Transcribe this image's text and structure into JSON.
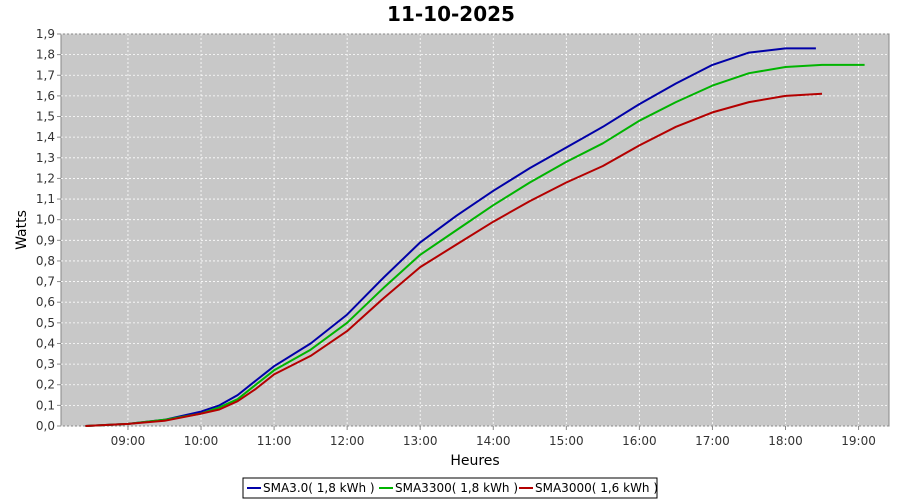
{
  "chart_data": {
    "type": "line",
    "title": "11-10-2025",
    "xlabel": "Heures",
    "ylabel": "Watts",
    "xlim": [
      "08:05",
      "19:25"
    ],
    "ylim": [
      0,
      1.9
    ],
    "x_ticks": [
      "09:00",
      "10:00",
      "11:00",
      "12:00",
      "13:00",
      "14:00",
      "15:00",
      "16:00",
      "17:00",
      "18:00",
      "19:00"
    ],
    "y_ticks": [
      "0,0",
      "0,1",
      "0,2",
      "0,3",
      "0,4",
      "0,5",
      "0,6",
      "0,7",
      "0,8",
      "0,9",
      "1,0",
      "1,1",
      "1,2",
      "1,3",
      "1,4",
      "1,5",
      "1,6",
      "1,7",
      "1,8",
      "1,9"
    ],
    "grid": true,
    "legend_position": "bottom",
    "background": "#c8c8c8",
    "series": [
      {
        "name": "SMA3.0( 1,8 kWh )",
        "color": "#0000a8",
        "x": [
          "08:25",
          "09:00",
          "09:30",
          "10:00",
          "10:15",
          "10:30",
          "10:45",
          "11:00",
          "11:30",
          "12:00",
          "12:30",
          "13:00",
          "13:30",
          "14:00",
          "14:30",
          "15:00",
          "15:30",
          "16:00",
          "16:30",
          "17:00",
          "17:30",
          "18:00",
          "18:25"
        ],
        "y": [
          0.0,
          0.01,
          0.03,
          0.07,
          0.1,
          0.15,
          0.22,
          0.29,
          0.4,
          0.54,
          0.72,
          0.89,
          1.02,
          1.14,
          1.25,
          1.35,
          1.45,
          1.56,
          1.66,
          1.75,
          1.81,
          1.83,
          1.83
        ]
      },
      {
        "name": "SMA3300( 1,8 kWh )",
        "color": "#00b400",
        "x": [
          "08:25",
          "09:00",
          "09:30",
          "10:00",
          "10:15",
          "10:30",
          "10:45",
          "11:00",
          "11:30",
          "12:00",
          "12:30",
          "13:00",
          "13:30",
          "14:00",
          "14:30",
          "15:00",
          "15:30",
          "16:00",
          "16:30",
          "17:00",
          "17:30",
          "18:00",
          "18:30",
          "19:05"
        ],
        "y": [
          0.0,
          0.01,
          0.03,
          0.06,
          0.09,
          0.13,
          0.2,
          0.27,
          0.37,
          0.5,
          0.67,
          0.83,
          0.95,
          1.07,
          1.18,
          1.28,
          1.37,
          1.48,
          1.57,
          1.65,
          1.71,
          1.74,
          1.75,
          1.75
        ]
      },
      {
        "name": "SMA3000( 1,6 kWh )",
        "color": "#b40000",
        "x": [
          "08:25",
          "09:00",
          "09:30",
          "10:00",
          "10:15",
          "10:30",
          "10:45",
          "11:00",
          "11:30",
          "12:00",
          "12:30",
          "13:00",
          "13:30",
          "14:00",
          "14:30",
          "15:00",
          "15:30",
          "16:00",
          "16:30",
          "17:00",
          "17:30",
          "18:00",
          "18:30"
        ],
        "y": [
          0.0,
          0.01,
          0.025,
          0.06,
          0.08,
          0.12,
          0.18,
          0.25,
          0.34,
          0.46,
          0.62,
          0.77,
          0.88,
          0.99,
          1.09,
          1.18,
          1.26,
          1.36,
          1.45,
          1.52,
          1.57,
          1.6,
          1.61
        ]
      }
    ]
  }
}
